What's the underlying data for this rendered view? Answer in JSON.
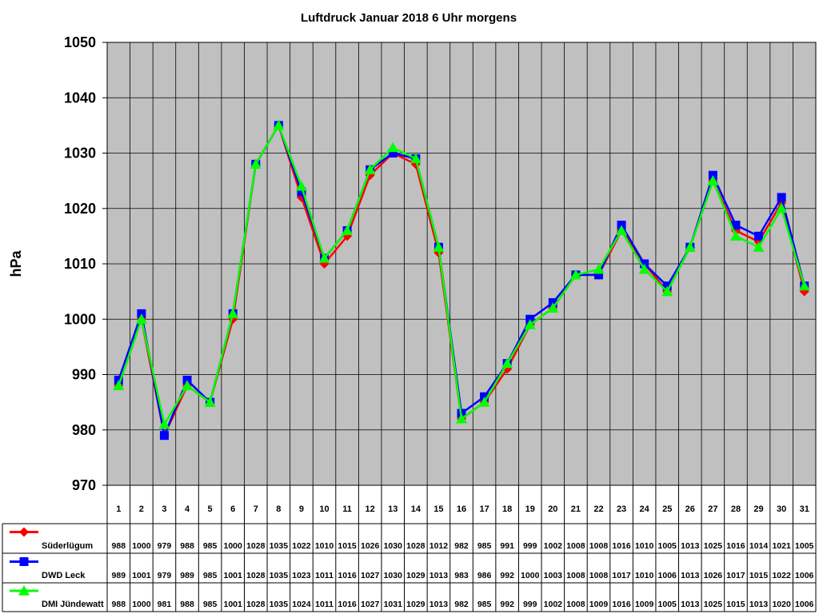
{
  "chart_data": {
    "type": "line",
    "title": "Luftdruck Januar 2018 6 Uhr morgens",
    "ylabel": "hPa",
    "xlabel": "",
    "ylim": [
      970,
      1050
    ],
    "y_ticks": [
      970,
      980,
      990,
      1000,
      1010,
      1020,
      1030,
      1040,
      1050
    ],
    "grid": true,
    "legend_placement": "table-left",
    "categories": [
      "1",
      "2",
      "3",
      "4",
      "5",
      "6",
      "7",
      "8",
      "9",
      "10",
      "11",
      "12",
      "13",
      "14",
      "15",
      "16",
      "17",
      "18",
      "19",
      "20",
      "21",
      "22",
      "23",
      "24",
      "25",
      "26",
      "27",
      "28",
      "29",
      "30",
      "31"
    ],
    "series": [
      {
        "name": "Süderlügum",
        "color": "#ff0000",
        "marker": "diamond",
        "values": [
          988,
          1000,
          979,
          988,
          985,
          1000,
          1028,
          1035,
          1022,
          1010,
          1015,
          1026,
          1030,
          1028,
          1012,
          982,
          985,
          991,
          999,
          1002,
          1008,
          1008,
          1016,
          1010,
          1005,
          1013,
          1025,
          1016,
          1014,
          1021,
          1005
        ]
      },
      {
        "name": "DWD Leck",
        "color": "#0000ff",
        "marker": "square",
        "values": [
          989,
          1001,
          979,
          989,
          985,
          1001,
          1028,
          1035,
          1023,
          1011,
          1016,
          1027,
          1030,
          1029,
          1013,
          983,
          986,
          992,
          1000,
          1003,
          1008,
          1008,
          1017,
          1010,
          1006,
          1013,
          1026,
          1017,
          1015,
          1022,
          1006
        ]
      },
      {
        "name": "DMI Jündewatt",
        "color": "#00ff00",
        "marker": "triangle",
        "values": [
          988,
          1000,
          981,
          988,
          985,
          1001,
          1028,
          1035,
          1024,
          1011,
          1016,
          1027,
          1031,
          1029,
          1013,
          982,
          985,
          992,
          999,
          1002,
          1008,
          1009,
          1016,
          1009,
          1005,
          1013,
          1025,
          1015,
          1013,
          1020,
          1006
        ]
      }
    ]
  }
}
